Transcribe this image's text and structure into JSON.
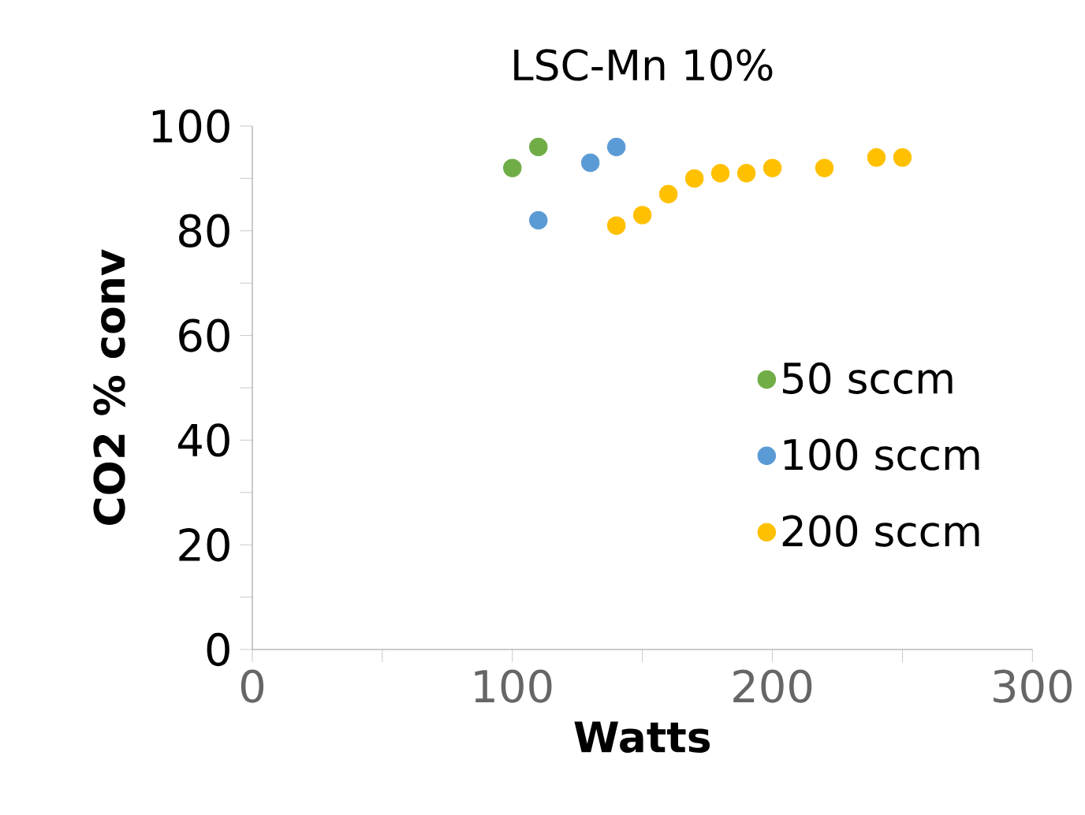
{
  "chart_data": {
    "type": "scatter",
    "title": "LSC-Mn 10%",
    "xlabel": "Watts",
    "ylabel": "CO2 % conv",
    "xlim": [
      0,
      300
    ],
    "ylim": [
      0,
      100
    ],
    "xticks": [
      0,
      100,
      200,
      300
    ],
    "yticks": [
      0,
      20,
      40,
      60,
      80,
      100
    ],
    "marker": "circle",
    "legend": "right",
    "grid": false,
    "series": [
      {
        "name": "50 sccm",
        "color": "#70ad47",
        "x": [
          100,
          110
        ],
        "values": [
          92,
          96
        ]
      },
      {
        "name": "100 sccm",
        "color": "#5b9bd5",
        "x": [
          110,
          130,
          140
        ],
        "values": [
          82,
          93,
          96
        ]
      },
      {
        "name": "200 sccm",
        "color": "#ffc000",
        "x": [
          140,
          150,
          160,
          170,
          180,
          190,
          200,
          220,
          240,
          250
        ],
        "values": [
          81,
          83,
          87,
          90,
          91,
          91,
          92,
          92,
          94,
          94
        ]
      }
    ]
  }
}
